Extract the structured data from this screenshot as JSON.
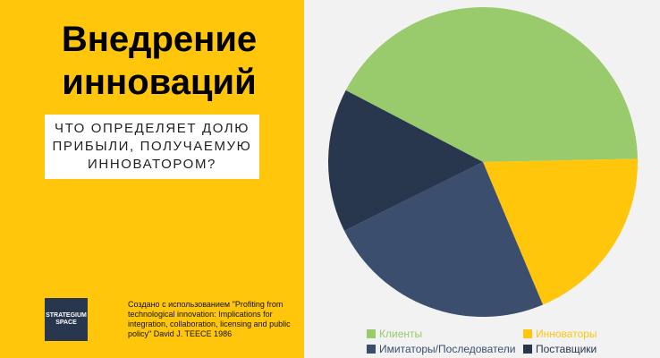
{
  "title": "Внедрение инноваций",
  "subtitle": "ЧТО ОПРЕДЕЛЯЕТ ДОЛЮ ПРИБЫЛИ, ПОЛУЧАЕМУЮ ИННОВАТОРОМ?",
  "logo": "STRATEGIUM SPACE",
  "credit": "Создано с использованием \"Profiting from technological innovation: Implications for integration, collaboration, licensing and public policy\" David J. TEECE 1986",
  "chart_data": {
    "type": "pie",
    "categories": [
      "Клиенты",
      "Инноваторы",
      "Имитаторы/Последователи",
      "Поставщики"
    ],
    "values": [
      42,
      19,
      24,
      15
    ],
    "colors": [
      "#99cb6c",
      "#ffc60b",
      "#3b4e6d",
      "#28374d"
    ],
    "legend": "bottom"
  }
}
